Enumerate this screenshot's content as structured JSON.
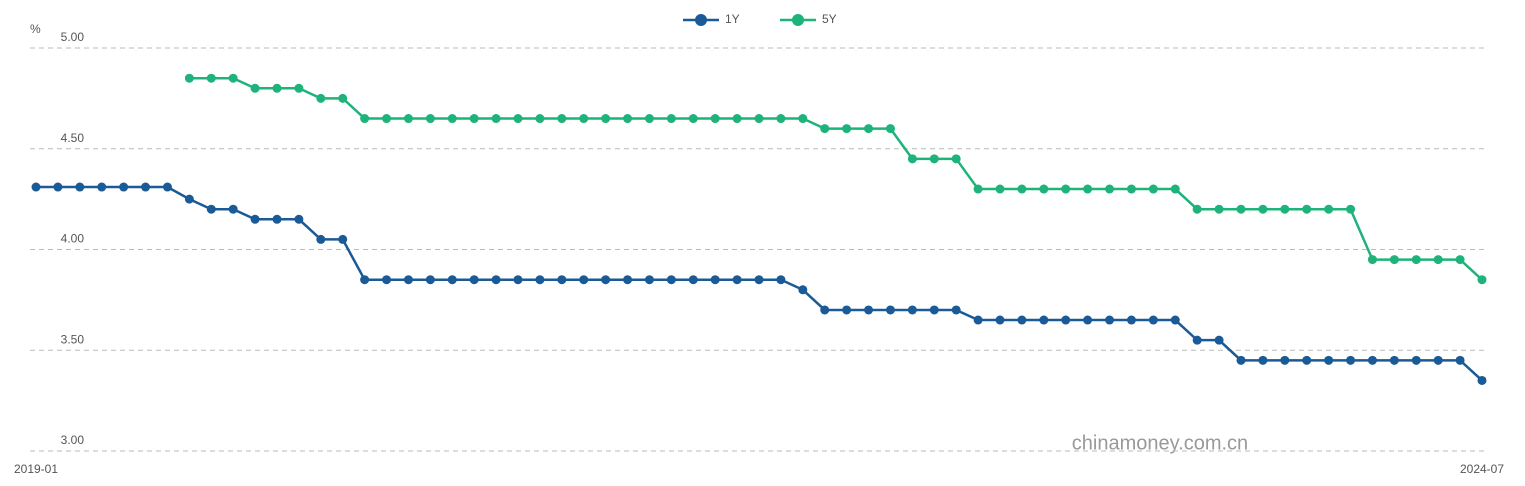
{
  "chart_data": {
    "type": "line",
    "y_unit": "%",
    "watermark": "chinamoney.com.cn",
    "categories": [
      "2019-01",
      null,
      null,
      null,
      null,
      null,
      null,
      null,
      null,
      null,
      null,
      null,
      null,
      null,
      null,
      null,
      null,
      null,
      null,
      null,
      null,
      null,
      null,
      null,
      null,
      null,
      null,
      null,
      null,
      null,
      null,
      null,
      null,
      null,
      null,
      null,
      null,
      null,
      null,
      null,
      null,
      null,
      null,
      null,
      null,
      null,
      null,
      null,
      null,
      null,
      null,
      null,
      null,
      null,
      null,
      null,
      null,
      null,
      null,
      null,
      null,
      null,
      null,
      null,
      null,
      null,
      "2024-07"
    ],
    "series": [
      {
        "name": "1Y",
        "color": "#1a5a96",
        "values": [
          4.31,
          4.31,
          4.31,
          4.31,
          4.31,
          4.31,
          4.31,
          4.25,
          4.2,
          4.2,
          4.15,
          4.15,
          4.15,
          4.05,
          4.05,
          3.85,
          3.85,
          3.85,
          3.85,
          3.85,
          3.85,
          3.85,
          3.85,
          3.85,
          3.85,
          3.85,
          3.85,
          3.85,
          3.85,
          3.85,
          3.85,
          3.85,
          3.85,
          3.85,
          3.85,
          3.8,
          3.7,
          3.7,
          3.7,
          3.7,
          3.7,
          3.7,
          3.7,
          3.65,
          3.65,
          3.65,
          3.65,
          3.65,
          3.65,
          3.65,
          3.65,
          3.65,
          3.65,
          3.55,
          3.55,
          3.45,
          3.45,
          3.45,
          3.45,
          3.45,
          3.45,
          3.45,
          3.45,
          3.45,
          3.45,
          3.45,
          3.35
        ]
      },
      {
        "name": "5Y",
        "color": "#1db37a",
        "values": [
          null,
          null,
          null,
          null,
          null,
          null,
          null,
          4.85,
          4.85,
          4.85,
          4.8,
          4.8,
          4.8,
          4.75,
          4.75,
          4.65,
          4.65,
          4.65,
          4.65,
          4.65,
          4.65,
          4.65,
          4.65,
          4.65,
          4.65,
          4.65,
          4.65,
          4.65,
          4.65,
          4.65,
          4.65,
          4.65,
          4.65,
          4.65,
          4.65,
          4.65,
          4.6,
          4.6,
          4.6,
          4.6,
          4.45,
          4.45,
          4.45,
          4.3,
          4.3,
          4.3,
          4.3,
          4.3,
          4.3,
          4.3,
          4.3,
          4.3,
          4.3,
          4.2,
          4.2,
          4.2,
          4.2,
          4.2,
          4.2,
          4.2,
          4.2,
          3.95,
          3.95,
          3.95,
          3.95,
          3.95,
          3.85
        ]
      }
    ],
    "ylim": [
      3,
      5
    ],
    "yticks": [
      {
        "value": 3,
        "label": "3.00"
      },
      {
        "value": 3.5,
        "label": "3.50"
      },
      {
        "value": 4,
        "label": "4.00"
      },
      {
        "value": 4.5,
        "label": "4.50"
      },
      {
        "value": 5,
        "label": "5.00"
      }
    ],
    "grid": true,
    "legend": "top"
  }
}
